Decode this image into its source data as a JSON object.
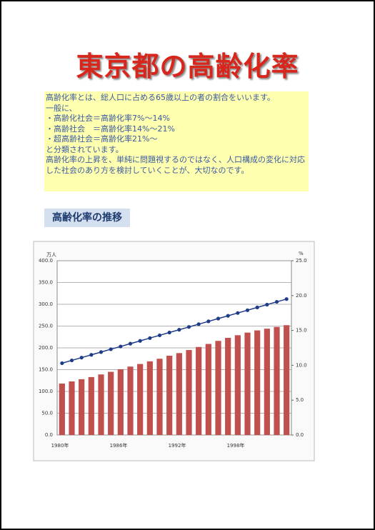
{
  "title": "東京都の高齢化率",
  "intro": {
    "lines": [
      "高齢化率とは、総人口に占める65歳以上の者の割合をいいます。",
      "一般に、",
      "・高齢化社会＝高齢化率7%～14%",
      "・高齢社会　＝高齢化率14%～21%",
      "・超高齢社会＝高齢化率21%～",
      "と分類されています。",
      "高齢化率の上昇を、単純に問題視するのではなく、人口構成の変化に対応した社会のあり方を検討していくことが、大切なのです。"
    ]
  },
  "section_heading": "高齢化率の推移",
  "chart_data": {
    "type": "bar",
    "y_unit": "万人",
    "y2_unit": "%",
    "categories": [
      "1980年",
      null,
      null,
      null,
      null,
      null,
      "1986年",
      null,
      null,
      null,
      null,
      null,
      "1992年",
      null,
      null,
      null,
      null,
      null,
      "1998年",
      null,
      null,
      null,
      null,
      null
    ],
    "series": [
      {
        "type": "bar",
        "color": "#c0504d",
        "values": [
          118,
          123,
          128,
          133,
          139,
          145,
          151,
          157,
          163,
          169,
          175,
          182,
          188,
          195,
          202,
          209,
          216,
          223,
          229,
          235,
          240,
          244,
          248,
          252
        ]
      },
      {
        "type": "line",
        "axis": "y2",
        "color": "#1f3c88",
        "values": [
          10.3,
          10.7,
          11.1,
          11.5,
          11.9,
          12.3,
          12.7,
          13.1,
          13.5,
          13.9,
          14.3,
          14.7,
          15.1,
          15.5,
          15.9,
          16.3,
          16.7,
          17.1,
          17.5,
          17.9,
          18.3,
          18.7,
          19.1,
          19.5
        ]
      }
    ],
    "ylim": [
      0,
      400
    ],
    "yticks": [
      {
        "value": 0,
        "label": "0.0"
      },
      {
        "value": 50,
        "label": "50.0"
      },
      {
        "value": 100,
        "label": "100.0"
      },
      {
        "value": 150,
        "label": "150.0"
      },
      {
        "value": 200,
        "label": "200.0"
      },
      {
        "value": 250,
        "label": "250.0"
      },
      {
        "value": 300,
        "label": "300.0"
      },
      {
        "value": 350,
        "label": "350.0"
      },
      {
        "value": 400,
        "label": "400.0"
      }
    ],
    "y2lim": [
      0,
      25
    ],
    "y2ticks": [
      {
        "value": 0,
        "label": "0.0"
      },
      {
        "value": 5,
        "label": "5.0"
      },
      {
        "value": 10,
        "label": "10.0"
      },
      {
        "value": 15,
        "label": "15.0"
      },
      {
        "value": 20,
        "label": "20.0"
      },
      {
        "value": 25,
        "label": "25.0"
      }
    ],
    "grid": true
  }
}
